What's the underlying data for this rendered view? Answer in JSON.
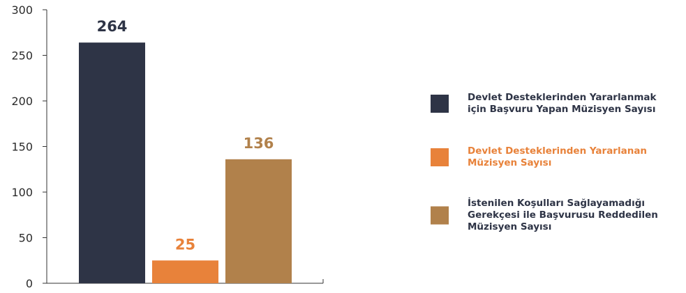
{
  "chart_data": {
    "type": "bar",
    "ylim": [
      0,
      300
    ],
    "yticks": [
      0,
      50,
      100,
      150,
      200,
      250,
      300
    ],
    "grid": false,
    "legend_position": "right",
    "series": [
      {
        "name_lines": [
          "Devlet Desteklerinden Yararlanmak",
          "için Başvuru Yapan Müzisyen Sayısı"
        ],
        "value": 264,
        "label": "264",
        "color": "#2e3446",
        "label_color": "#2e3446",
        "legend_text_color": "#2e3446"
      },
      {
        "name_lines": [
          "Devlet Desteklerinden Yararlanan",
          "Müzisyen Sayısı"
        ],
        "value": 25,
        "label": "25",
        "color": "#e8823a",
        "label_color": "#e8823a",
        "legend_text_color": "#e8823a"
      },
      {
        "name_lines": [
          "İstenilen Koşulları Sağlayamadığı",
          "Gerekçesi ile Başvurusu Reddedilen",
          "Müzisyen Sayısı"
        ],
        "value": 136,
        "label": "136",
        "color": "#b1814b",
        "label_color": "#b1814b",
        "legend_text_color": "#2e3446"
      }
    ]
  }
}
